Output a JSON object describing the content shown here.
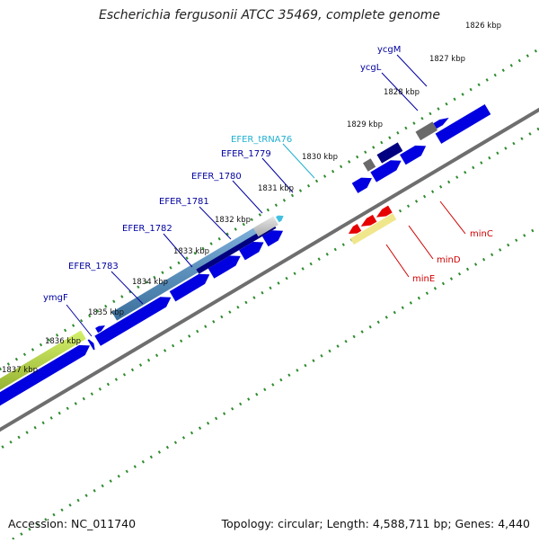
{
  "title": "Escherichia fergusonii ATCC 35469, complete genome",
  "footer": {
    "accession": "Accession: NC_011740",
    "summary": "Topology: circular; Length: 4,588,711 bp; Genes: 4,440"
  },
  "colors": {
    "backbone": "#6e6e6e",
    "tick": "#2e8b2e",
    "cds": "#0000e0",
    "cds_dark": "#000080",
    "gene_gray": "#6a6a6a",
    "gene_light": "#c8c8c8",
    "gene_steel": "#4682b4",
    "gene_olive": "#8fae1b",
    "gene_red": "#e60000",
    "gene_khaki": "#f0e68c",
    "trna": "#40c0e0",
    "label_blue": "#0000a0",
    "label_cyan": "#20b0d0",
    "label_red": "#d00000"
  },
  "scale": {
    "unit": "kbp",
    "positions_kbp": [
      1826,
      1827,
      1828,
      1829,
      1830,
      1831,
      1832,
      1833,
      1834,
      1835,
      1836,
      1837
    ],
    "labels": [
      "1826 kbp",
      "1827 kbp",
      "1828 kbp",
      "1829 kbp",
      "1830 kbp",
      "1831 kbp",
      "1832 kbp",
      "1833 kbp",
      "1834 kbp",
      "1835 kbp",
      "1836 kbp",
      "1837 kbp"
    ]
  },
  "genes": [
    {
      "name": "ycgM",
      "color": "label_blue"
    },
    {
      "name": "ycgL",
      "color": "label_blue"
    },
    {
      "name": "EFER_tRNA76",
      "color": "label_cyan"
    },
    {
      "name": "EFER_1779",
      "color": "label_blue"
    },
    {
      "name": "EFER_1780",
      "color": "label_blue"
    },
    {
      "name": "EFER_1781",
      "color": "label_blue"
    },
    {
      "name": "EFER_1782",
      "color": "label_blue"
    },
    {
      "name": "EFER_1783",
      "color": "label_blue"
    },
    {
      "name": "ymgF",
      "color": "label_blue"
    },
    {
      "name": "minC",
      "color": "label_red"
    },
    {
      "name": "minD",
      "color": "label_red"
    },
    {
      "name": "minE",
      "color": "label_red"
    }
  ]
}
